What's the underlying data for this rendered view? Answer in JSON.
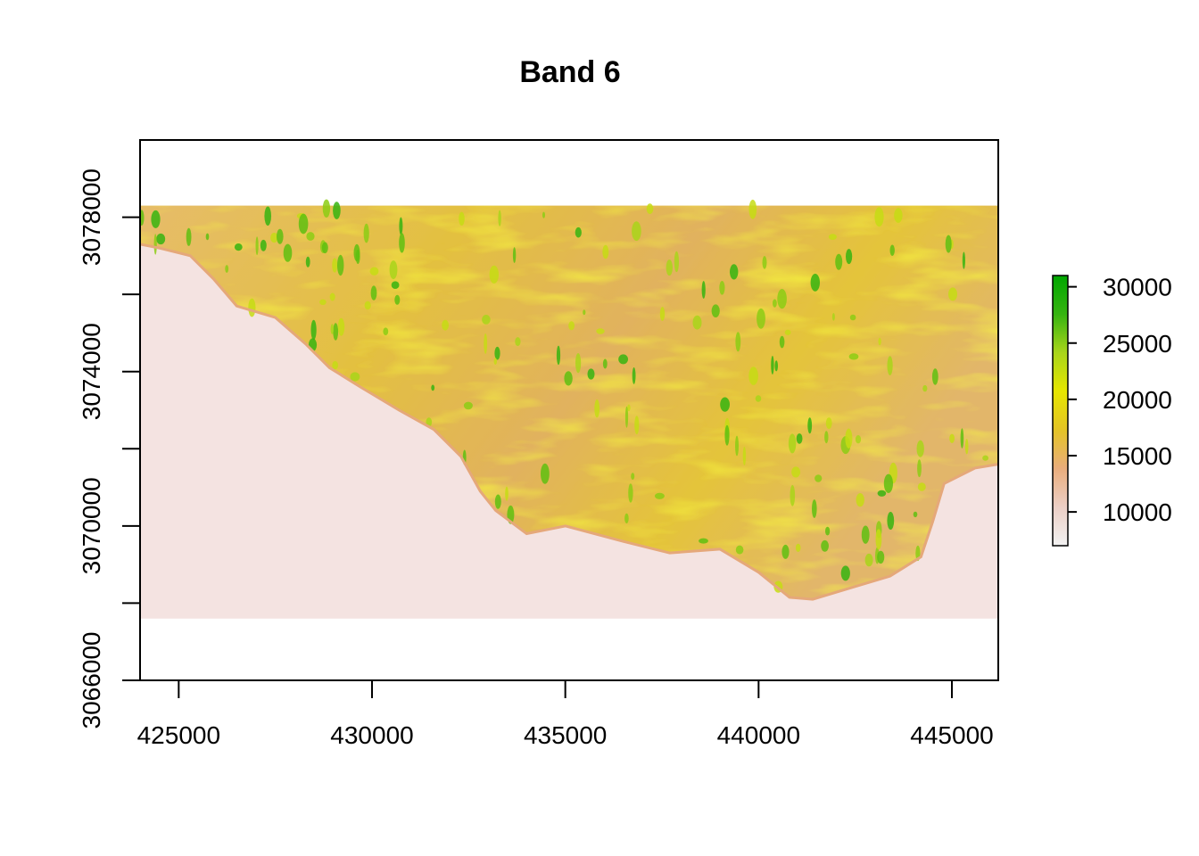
{
  "chart_data": {
    "type": "heatmap",
    "title": "Band 6",
    "xlabel": "",
    "ylabel": "",
    "x_range": [
      424000,
      446200
    ],
    "y_range": [
      3066000,
      3080000
    ],
    "raster_extent": {
      "x": [
        424000,
        446200
      ],
      "y": [
        3067600,
        3078300
      ]
    },
    "x_ticks": [
      425000,
      430000,
      435000,
      440000,
      445000
    ],
    "x_tick_labels": [
      "425000",
      "430000",
      "435000",
      "440000",
      "445000"
    ],
    "y_ticks": [
      3066000,
      3068000,
      3070000,
      3072000,
      3074000,
      3076000,
      3078000
    ],
    "y_tick_labels": [
      "3066000",
      "",
      "3070000",
      "",
      "3074000",
      "",
      "3078000"
    ],
    "legend": {
      "position": "right",
      "range": [
        7000,
        31000
      ],
      "ticks": [
        10000,
        15000,
        20000,
        25000,
        30000
      ],
      "tick_labels": [
        "10000",
        "15000",
        "20000",
        "25000",
        "30000"
      ],
      "colors": [
        "#f2f2f2",
        "#eccfc6",
        "#e9ad7c",
        "#e4c425",
        "#e6e600",
        "#a9d51a",
        "#36b411",
        "#00a600"
      ]
    },
    "coastline": [
      [
        424000,
        3077300
      ],
      [
        424500,
        3077200
      ],
      [
        425300,
        3077000
      ],
      [
        425900,
        3076400
      ],
      [
        426500,
        3075700
      ],
      [
        427500,
        3075400
      ],
      [
        428300,
        3074700
      ],
      [
        428900,
        3074100
      ],
      [
        429700,
        3073600
      ],
      [
        430700,
        3073000
      ],
      [
        431600,
        3072500
      ],
      [
        432300,
        3071800
      ],
      [
        432800,
        3070900
      ],
      [
        433200,
        3070400
      ],
      [
        434000,
        3069800
      ],
      [
        435000,
        3070000
      ],
      [
        436500,
        3069600
      ],
      [
        437700,
        3069300
      ],
      [
        439000,
        3069400
      ],
      [
        440000,
        3068800
      ],
      [
        440800,
        3068150
      ],
      [
        441400,
        3068100
      ],
      [
        442400,
        3068400
      ],
      [
        443400,
        3068700
      ],
      [
        444200,
        3069200
      ],
      [
        444500,
        3070100
      ],
      [
        444800,
        3071100
      ],
      [
        445600,
        3071500
      ],
      [
        446200,
        3071600
      ]
    ]
  }
}
